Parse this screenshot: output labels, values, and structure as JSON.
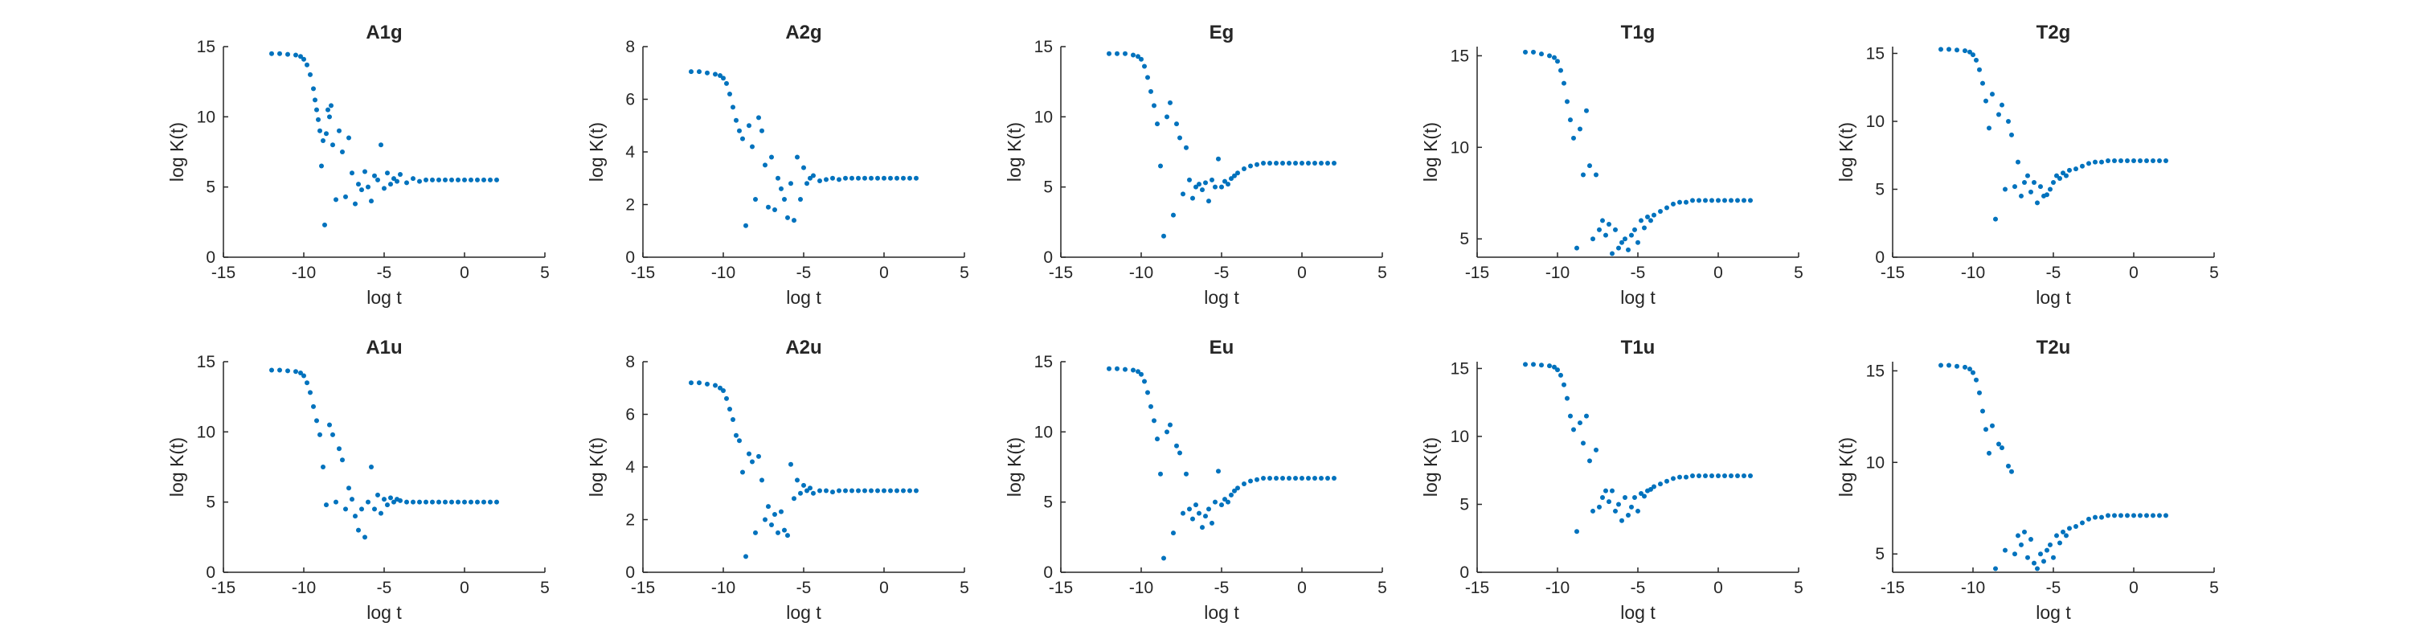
{
  "chart_data": [
    {
      "type": "scatter",
      "title": "A1g",
      "xlabel": "log t",
      "ylabel": "log K(t)",
      "xlim": [
        -15,
        5
      ],
      "ylim": [
        0,
        15
      ],
      "xticks": [
        "-15",
        "-10",
        "-5",
        "0",
        "5"
      ],
      "yticks": [
        "0",
        "5",
        "10",
        "15"
      ],
      "color": "#0072BD",
      "grid": false,
      "legend": "none",
      "x": [
        -12,
        -11.5,
        -11,
        -10.5,
        -10.2,
        -10,
        -9.8,
        -9.6,
        -9.4,
        -9.3,
        -9.2,
        -9.1,
        -9.0,
        -8.9,
        -8.8,
        -8.7,
        -8.6,
        -8.5,
        -8.4,
        -8.3,
        -8.2,
        -8.0,
        -7.8,
        -7.6,
        -7.4,
        -7.2,
        -7.0,
        -6.8,
        -6.6,
        -6.4,
        -6.2,
        -6.0,
        -5.8,
        -5.6,
        -5.4,
        -5.2,
        -5.0,
        -4.8,
        -4.6,
        -4.4,
        -4.2,
        -4.0,
        -3.6,
        -3.2,
        -2.8,
        -2.4,
        -2.0,
        -1.6,
        -1.2,
        -0.8,
        -0.4,
        0,
        0.4,
        0.8,
        1.2,
        1.6,
        2.0
      ],
      "y": [
        14.5,
        14.5,
        14.45,
        14.4,
        14.3,
        14.1,
        13.7,
        13.0,
        12.0,
        11.2,
        10.5,
        9.8,
        9.0,
        6.5,
        8.3,
        2.3,
        8.8,
        10.5,
        10.0,
        10.8,
        8.0,
        4.1,
        9.0,
        7.5,
        4.3,
        8.5,
        6.0,
        3.8,
        5.2,
        4.8,
        6.1,
        5.0,
        4.0,
        5.8,
        5.5,
        8.0,
        4.9,
        6.0,
        5.2,
        5.6,
        5.4,
        5.9,
        5.3,
        5.6,
        5.4,
        5.5,
        5.5,
        5.5,
        5.5,
        5.5,
        5.5,
        5.5,
        5.5,
        5.5,
        5.5,
        5.5,
        5.5
      ]
    },
    {
      "type": "scatter",
      "title": "A2g",
      "xlabel": "log t",
      "ylabel": "log K(t)",
      "xlim": [
        -15,
        5
      ],
      "ylim": [
        0,
        8
      ],
      "xticks": [
        "-15",
        "-10",
        "-5",
        "0",
        "5"
      ],
      "yticks": [
        "0",
        "2",
        "4",
        "6",
        "8"
      ],
      "color": "#0072BD",
      "grid": false,
      "legend": "none",
      "x": [
        -12,
        -11.5,
        -11,
        -10.5,
        -10.2,
        -10,
        -9.8,
        -9.6,
        -9.4,
        -9.2,
        -9.0,
        -8.8,
        -8.6,
        -8.4,
        -8.2,
        -8.0,
        -7.8,
        -7.6,
        -7.4,
        -7.2,
        -7.0,
        -6.8,
        -6.6,
        -6.4,
        -6.2,
        -6.0,
        -5.8,
        -5.6,
        -5.4,
        -5.2,
        -5.0,
        -4.8,
        -4.6,
        -4.4,
        -4.0,
        -3.6,
        -3.2,
        -2.8,
        -2.4,
        -2.0,
        -1.6,
        -1.2,
        -0.8,
        -0.4,
        0,
        0.4,
        0.8,
        1.2,
        1.6,
        2.0
      ],
      "y": [
        7.05,
        7.05,
        7.0,
        6.95,
        6.9,
        6.8,
        6.6,
        6.2,
        5.7,
        5.2,
        4.8,
        4.5,
        1.2,
        5.0,
        4.2,
        2.2,
        5.3,
        4.8,
        3.5,
        1.9,
        3.8,
        1.8,
        3.0,
        2.6,
        2.2,
        1.5,
        2.8,
        1.4,
        3.8,
        2.2,
        3.4,
        2.8,
        3.0,
        3.1,
        2.9,
        2.95,
        3.0,
        2.95,
        3.0,
        3.0,
        3.0,
        3.0,
        3.0,
        3.0,
        3.0,
        3.0,
        3.0,
        3.0,
        3.0,
        3.0
      ]
    },
    {
      "type": "scatter",
      "title": "Eg",
      "xlabel": "log t",
      "ylabel": "log K(t)",
      "xlim": [
        -15,
        5
      ],
      "ylim": [
        0,
        15
      ],
      "xticks": [
        "-15",
        "-10",
        "-5",
        "0",
        "5"
      ],
      "yticks": [
        "0",
        "5",
        "10",
        "15"
      ],
      "color": "#0072BD",
      "grid": false,
      "legend": "none",
      "x": [
        -12,
        -11.5,
        -11,
        -10.5,
        -10.2,
        -10,
        -9.8,
        -9.6,
        -9.4,
        -9.2,
        -9.0,
        -8.8,
        -8.6,
        -8.4,
        -8.2,
        -8.0,
        -7.8,
        -7.6,
        -7.4,
        -7.2,
        -7.0,
        -6.8,
        -6.6,
        -6.4,
        -6.2,
        -6.0,
        -5.8,
        -5.6,
        -5.4,
        -5.2,
        -5.0,
        -4.8,
        -4.6,
        -4.4,
        -4.2,
        -4.0,
        -3.6,
        -3.2,
        -2.8,
        -2.4,
        -2.0,
        -1.6,
        -1.2,
        -0.8,
        -0.4,
        0,
        0.4,
        0.8,
        1.2,
        1.6,
        2.0
      ],
      "y": [
        14.5,
        14.5,
        14.5,
        14.4,
        14.3,
        14.1,
        13.6,
        12.8,
        11.8,
        10.8,
        9.5,
        6.5,
        1.5,
        10.0,
        11.0,
        3.0,
        9.5,
        8.5,
        4.5,
        7.8,
        5.5,
        4.2,
        5.0,
        5.2,
        4.8,
        5.3,
        4.0,
        5.5,
        5.0,
        7.0,
        5.0,
        5.4,
        5.2,
        5.6,
        5.8,
        6.0,
        6.3,
        6.5,
        6.6,
        6.7,
        6.7,
        6.7,
        6.7,
        6.7,
        6.7,
        6.7,
        6.7,
        6.7,
        6.7,
        6.7,
        6.7
      ]
    },
    {
      "type": "scatter",
      "title": "T1g",
      "xlabel": "log t",
      "ylabel": "log K(t)",
      "xlim": [
        -15,
        5
      ],
      "ylim": [
        4,
        15.5
      ],
      "xticks": [
        "-15",
        "-10",
        "-5",
        "0",
        "5"
      ],
      "yticks": [
        "5",
        "10",
        "15"
      ],
      "color": "#0072BD",
      "grid": false,
      "legend": "none",
      "x": [
        -12,
        -11.5,
        -11,
        -10.5,
        -10.2,
        -10,
        -9.8,
        -9.6,
        -9.4,
        -9.2,
        -9.0,
        -8.8,
        -8.6,
        -8.4,
        -8.2,
        -8.0,
        -7.8,
        -7.6,
        -7.4,
        -7.2,
        -7.0,
        -6.8,
        -6.6,
        -6.4,
        -6.2,
        -6.0,
        -5.8,
        -5.6,
        -5.4,
        -5.2,
        -5.0,
        -4.8,
        -4.6,
        -4.4,
        -4.2,
        -4.0,
        -3.6,
        -3.2,
        -2.8,
        -2.4,
        -2.0,
        -1.6,
        -1.2,
        -0.8,
        -0.4,
        0,
        0.4,
        0.8,
        1.2,
        1.6,
        2.0
      ],
      "y": [
        15.2,
        15.2,
        15.1,
        15.0,
        14.9,
        14.7,
        14.2,
        13.5,
        12.5,
        11.5,
        10.5,
        4.5,
        11.0,
        8.5,
        12.0,
        9.0,
        5.0,
        8.5,
        5.5,
        6.0,
        5.2,
        5.8,
        4.2,
        5.5,
        4.5,
        4.8,
        5.0,
        4.4,
        5.2,
        5.5,
        4.8,
        6.0,
        5.6,
        6.2,
        6.0,
        6.3,
        6.5,
        6.7,
        6.9,
        7.0,
        7.0,
        7.1,
        7.1,
        7.1,
        7.1,
        7.1,
        7.1,
        7.1,
        7.1,
        7.1,
        7.1
      ]
    },
    {
      "type": "scatter",
      "title": "T2g",
      "xlabel": "log t",
      "ylabel": "log K(t)",
      "xlim": [
        -15,
        5
      ],
      "ylim": [
        0,
        15.5
      ],
      "xticks": [
        "-15",
        "-10",
        "-5",
        "0",
        "5"
      ],
      "yticks": [
        "0",
        "5",
        "10",
        "15"
      ],
      "color": "#0072BD",
      "grid": false,
      "legend": "none",
      "x": [
        -12,
        -11.5,
        -11,
        -10.5,
        -10.2,
        -10,
        -9.8,
        -9.6,
        -9.4,
        -9.2,
        -9.0,
        -8.8,
        -8.6,
        -8.4,
        -8.2,
        -8.0,
        -7.8,
        -7.6,
        -7.4,
        -7.2,
        -7.0,
        -6.8,
        -6.6,
        -6.4,
        -6.2,
        -6.0,
        -5.8,
        -5.6,
        -5.4,
        -5.2,
        -5.0,
        -4.8,
        -4.6,
        -4.4,
        -4.2,
        -4.0,
        -3.6,
        -3.2,
        -2.8,
        -2.4,
        -2.0,
        -1.6,
        -1.2,
        -0.8,
        -0.4,
        0,
        0.4,
        0.8,
        1.2,
        1.6,
        2.0
      ],
      "y": [
        15.3,
        15.3,
        15.25,
        15.2,
        15.1,
        14.9,
        14.5,
        13.8,
        12.8,
        11.5,
        9.5,
        12.0,
        2.8,
        10.5,
        11.2,
        5.0,
        10.0,
        9.0,
        5.2,
        7.0,
        4.5,
        5.5,
        6.0,
        4.8,
        5.5,
        4.0,
        5.2,
        4.5,
        4.6,
        5.0,
        5.5,
        6.0,
        5.8,
        6.2,
        6.0,
        6.4,
        6.5,
        6.7,
        6.9,
        7.0,
        7.0,
        7.1,
        7.1,
        7.1,
        7.1,
        7.1,
        7.1,
        7.1,
        7.1,
        7.1,
        7.1
      ]
    },
    {
      "type": "scatter",
      "title": "A1u",
      "xlabel": "log t",
      "ylabel": "log K(t)",
      "xlim": [
        -15,
        5
      ],
      "ylim": [
        0,
        15
      ],
      "xticks": [
        "-15",
        "-10",
        "-5",
        "0",
        "5"
      ],
      "yticks": [
        "0",
        "5",
        "10",
        "15"
      ],
      "color": "#0072BD",
      "grid": false,
      "legend": "none",
      "x": [
        -12,
        -11.5,
        -11,
        -10.5,
        -10.2,
        -10,
        -9.8,
        -9.6,
        -9.4,
        -9.2,
        -9.0,
        -8.8,
        -8.6,
        -8.4,
        -8.2,
        -8.0,
        -7.8,
        -7.6,
        -7.4,
        -7.2,
        -7.0,
        -6.8,
        -6.6,
        -6.4,
        -6.2,
        -6.0,
        -5.8,
        -5.6,
        -5.4,
        -5.2,
        -5.0,
        -4.8,
        -4.6,
        -4.4,
        -4.2,
        -4.0,
        -3.6,
        -3.2,
        -2.8,
        -2.4,
        -2.0,
        -1.6,
        -1.2,
        -0.8,
        -0.4,
        0,
        0.4,
        0.8,
        1.2,
        1.6,
        2.0
      ],
      "y": [
        14.4,
        14.4,
        14.35,
        14.3,
        14.2,
        14.0,
        13.5,
        12.8,
        11.8,
        10.8,
        9.8,
        7.5,
        4.8,
        10.5,
        9.8,
        5.0,
        8.8,
        8.0,
        4.5,
        6.0,
        5.2,
        4.0,
        3.0,
        4.5,
        2.5,
        5.0,
        7.5,
        4.5,
        5.5,
        4.2,
        5.2,
        4.8,
        5.3,
        5.0,
        5.2,
        5.1,
        5.0,
        5.0,
        5.0,
        5.0,
        5.0,
        5.0,
        5.0,
        5.0,
        5.0,
        5.0,
        5.0,
        5.0,
        5.0,
        5.0,
        5.0
      ]
    },
    {
      "type": "scatter",
      "title": "A2u",
      "xlabel": "log t",
      "ylabel": "log K(t)",
      "xlim": [
        -15,
        5
      ],
      "ylim": [
        0,
        8
      ],
      "xticks": [
        "-15",
        "-10",
        "-5",
        "0",
        "5"
      ],
      "yticks": [
        "0",
        "2",
        "4",
        "6",
        "8"
      ],
      "color": "#0072BD",
      "grid": false,
      "legend": "none",
      "x": [
        -12,
        -11.5,
        -11,
        -10.5,
        -10.2,
        -10,
        -9.8,
        -9.6,
        -9.4,
        -9.2,
        -9.0,
        -8.8,
        -8.6,
        -8.4,
        -8.2,
        -8.0,
        -7.8,
        -7.6,
        -7.4,
        -7.2,
        -7.0,
        -6.8,
        -6.6,
        -6.4,
        -6.2,
        -6.0,
        -5.8,
        -5.6,
        -5.4,
        -5.2,
        -5.0,
        -4.8,
        -4.6,
        -4.4,
        -4.0,
        -3.6,
        -3.2,
        -2.8,
        -2.4,
        -2.0,
        -1.6,
        -1.2,
        -0.8,
        -0.4,
        0,
        0.4,
        0.8,
        1.2,
        1.6,
        2.0
      ],
      "y": [
        7.2,
        7.2,
        7.15,
        7.1,
        7.0,
        6.9,
        6.6,
        6.2,
        5.8,
        5.2,
        5.0,
        3.8,
        0.6,
        4.5,
        4.2,
        1.5,
        4.4,
        3.5,
        2.0,
        2.5,
        1.8,
        2.2,
        1.5,
        2.3,
        1.6,
        1.4,
        4.1,
        2.8,
        3.5,
        3.0,
        3.3,
        3.1,
        3.2,
        3.0,
        3.1,
        3.1,
        3.05,
        3.1,
        3.1,
        3.1,
        3.1,
        3.1,
        3.1,
        3.1,
        3.1,
        3.1,
        3.1,
        3.1,
        3.1,
        3.1
      ]
    },
    {
      "type": "scatter",
      "title": "Eu",
      "xlabel": "log t",
      "ylabel": "log K(t)",
      "xlim": [
        -15,
        5
      ],
      "ylim": [
        0,
        15
      ],
      "xticks": [
        "-15",
        "-10",
        "-5",
        "0",
        "5"
      ],
      "yticks": [
        "0",
        "5",
        "10",
        "15"
      ],
      "color": "#0072BD",
      "grid": false,
      "legend": "none",
      "x": [
        -12,
        -11.5,
        -11,
        -10.5,
        -10.2,
        -10,
        -9.8,
        -9.6,
        -9.4,
        -9.2,
        -9.0,
        -8.8,
        -8.6,
        -8.4,
        -8.2,
        -8.0,
        -7.8,
        -7.6,
        -7.4,
        -7.2,
        -7.0,
        -6.8,
        -6.6,
        -6.4,
        -6.2,
        -6.0,
        -5.8,
        -5.6,
        -5.4,
        -5.2,
        -5.0,
        -4.8,
        -4.6,
        -4.4,
        -4.2,
        -4.0,
        -3.6,
        -3.2,
        -2.8,
        -2.4,
        -2.0,
        -1.6,
        -1.2,
        -0.8,
        -0.4,
        0,
        0.4,
        0.8,
        1.2,
        1.6,
        2.0
      ],
      "y": [
        14.5,
        14.5,
        14.45,
        14.4,
        14.3,
        14.1,
        13.6,
        12.8,
        11.8,
        10.8,
        9.5,
        7.0,
        1.0,
        10.0,
        10.5,
        2.8,
        9.0,
        8.5,
        4.2,
        7.0,
        4.5,
        3.8,
        4.8,
        4.2,
        3.2,
        4.0,
        4.5,
        3.5,
        5.0,
        7.2,
        4.8,
        5.2,
        5.0,
        5.5,
        5.8,
        6.0,
        6.3,
        6.5,
        6.6,
        6.7,
        6.7,
        6.7,
        6.7,
        6.7,
        6.7,
        6.7,
        6.7,
        6.7,
        6.7,
        6.7,
        6.7
      ]
    },
    {
      "type": "scatter",
      "title": "T1u",
      "xlabel": "log t",
      "ylabel": "log K(t)",
      "xlim": [
        -15,
        5
      ],
      "ylim": [
        0,
        15.5
      ],
      "xticks": [
        "-15",
        "-10",
        "-5",
        "0",
        "5"
      ],
      "yticks": [
        "0",
        "5",
        "10",
        "15"
      ],
      "color": "#0072BD",
      "grid": false,
      "legend": "none",
      "x": [
        -12,
        -11.5,
        -11,
        -10.5,
        -10.2,
        -10,
        -9.8,
        -9.6,
        -9.4,
        -9.2,
        -9.0,
        -8.8,
        -8.6,
        -8.4,
        -8.2,
        -8.0,
        -7.8,
        -7.6,
        -7.4,
        -7.2,
        -7.0,
        -6.8,
        -6.6,
        -6.4,
        -6.2,
        -6.0,
        -5.8,
        -5.6,
        -5.4,
        -5.2,
        -5.0,
        -4.8,
        -4.6,
        -4.4,
        -4.2,
        -4.0,
        -3.6,
        -3.2,
        -2.8,
        -2.4,
        -2.0,
        -1.6,
        -1.2,
        -0.8,
        -0.4,
        0,
        0.4,
        0.8,
        1.2,
        1.6,
        2.0
      ],
      "y": [
        15.3,
        15.3,
        15.25,
        15.2,
        15.1,
        14.9,
        14.5,
        13.8,
        12.8,
        11.5,
        10.5,
        3.0,
        11.0,
        9.5,
        11.5,
        8.2,
        4.5,
        9.0,
        4.8,
        5.5,
        6.0,
        5.2,
        6.0,
        4.5,
        5.0,
        3.8,
        5.5,
        4.2,
        4.8,
        5.5,
        4.5,
        5.8,
        5.6,
        6.0,
        6.1,
        6.3,
        6.5,
        6.7,
        6.9,
        7.0,
        7.0,
        7.1,
        7.1,
        7.1,
        7.1,
        7.1,
        7.1,
        7.1,
        7.1,
        7.1,
        7.1
      ]
    },
    {
      "type": "scatter",
      "title": "T2u",
      "xlabel": "log t",
      "ylabel": "log K(t)",
      "xlim": [
        -15,
        5
      ],
      "ylim": [
        4,
        15.5
      ],
      "xticks": [
        "-15",
        "-10",
        "-5",
        "0",
        "5"
      ],
      "yticks": [
        "5",
        "10",
        "15"
      ],
      "color": "#0072BD",
      "grid": false,
      "legend": "none",
      "x": [
        -12,
        -11.5,
        -11,
        -10.5,
        -10.2,
        -10,
        -9.8,
        -9.6,
        -9.4,
        -9.2,
        -9.0,
        -8.8,
        -8.6,
        -8.4,
        -8.2,
        -8.0,
        -7.8,
        -7.6,
        -7.4,
        -7.2,
        -7.0,
        -6.8,
        -6.6,
        -6.4,
        -6.2,
        -6.0,
        -5.8,
        -5.6,
        -5.4,
        -5.2,
        -5.0,
        -4.8,
        -4.6,
        -4.4,
        -4.2,
        -4.0,
        -3.6,
        -3.2,
        -2.8,
        -2.4,
        -2.0,
        -1.6,
        -1.2,
        -0.8,
        -0.4,
        0,
        0.4,
        0.8,
        1.2,
        1.6,
        2.0
      ],
      "y": [
        15.3,
        15.3,
        15.25,
        15.2,
        15.1,
        14.9,
        14.5,
        13.8,
        12.8,
        11.8,
        10.5,
        12.0,
        4.2,
        11.0,
        10.8,
        5.2,
        9.8,
        9.5,
        5.0,
        6.0,
        5.5,
        6.2,
        4.8,
        5.8,
        4.5,
        4.2,
        5.0,
        4.6,
        5.2,
        5.5,
        4.8,
        6.0,
        5.6,
        6.2,
        6.0,
        6.4,
        6.5,
        6.7,
        6.9,
        7.0,
        7.0,
        7.1,
        7.1,
        7.1,
        7.1,
        7.1,
        7.1,
        7.1,
        7.1,
        7.1,
        7.1
      ]
    }
  ]
}
